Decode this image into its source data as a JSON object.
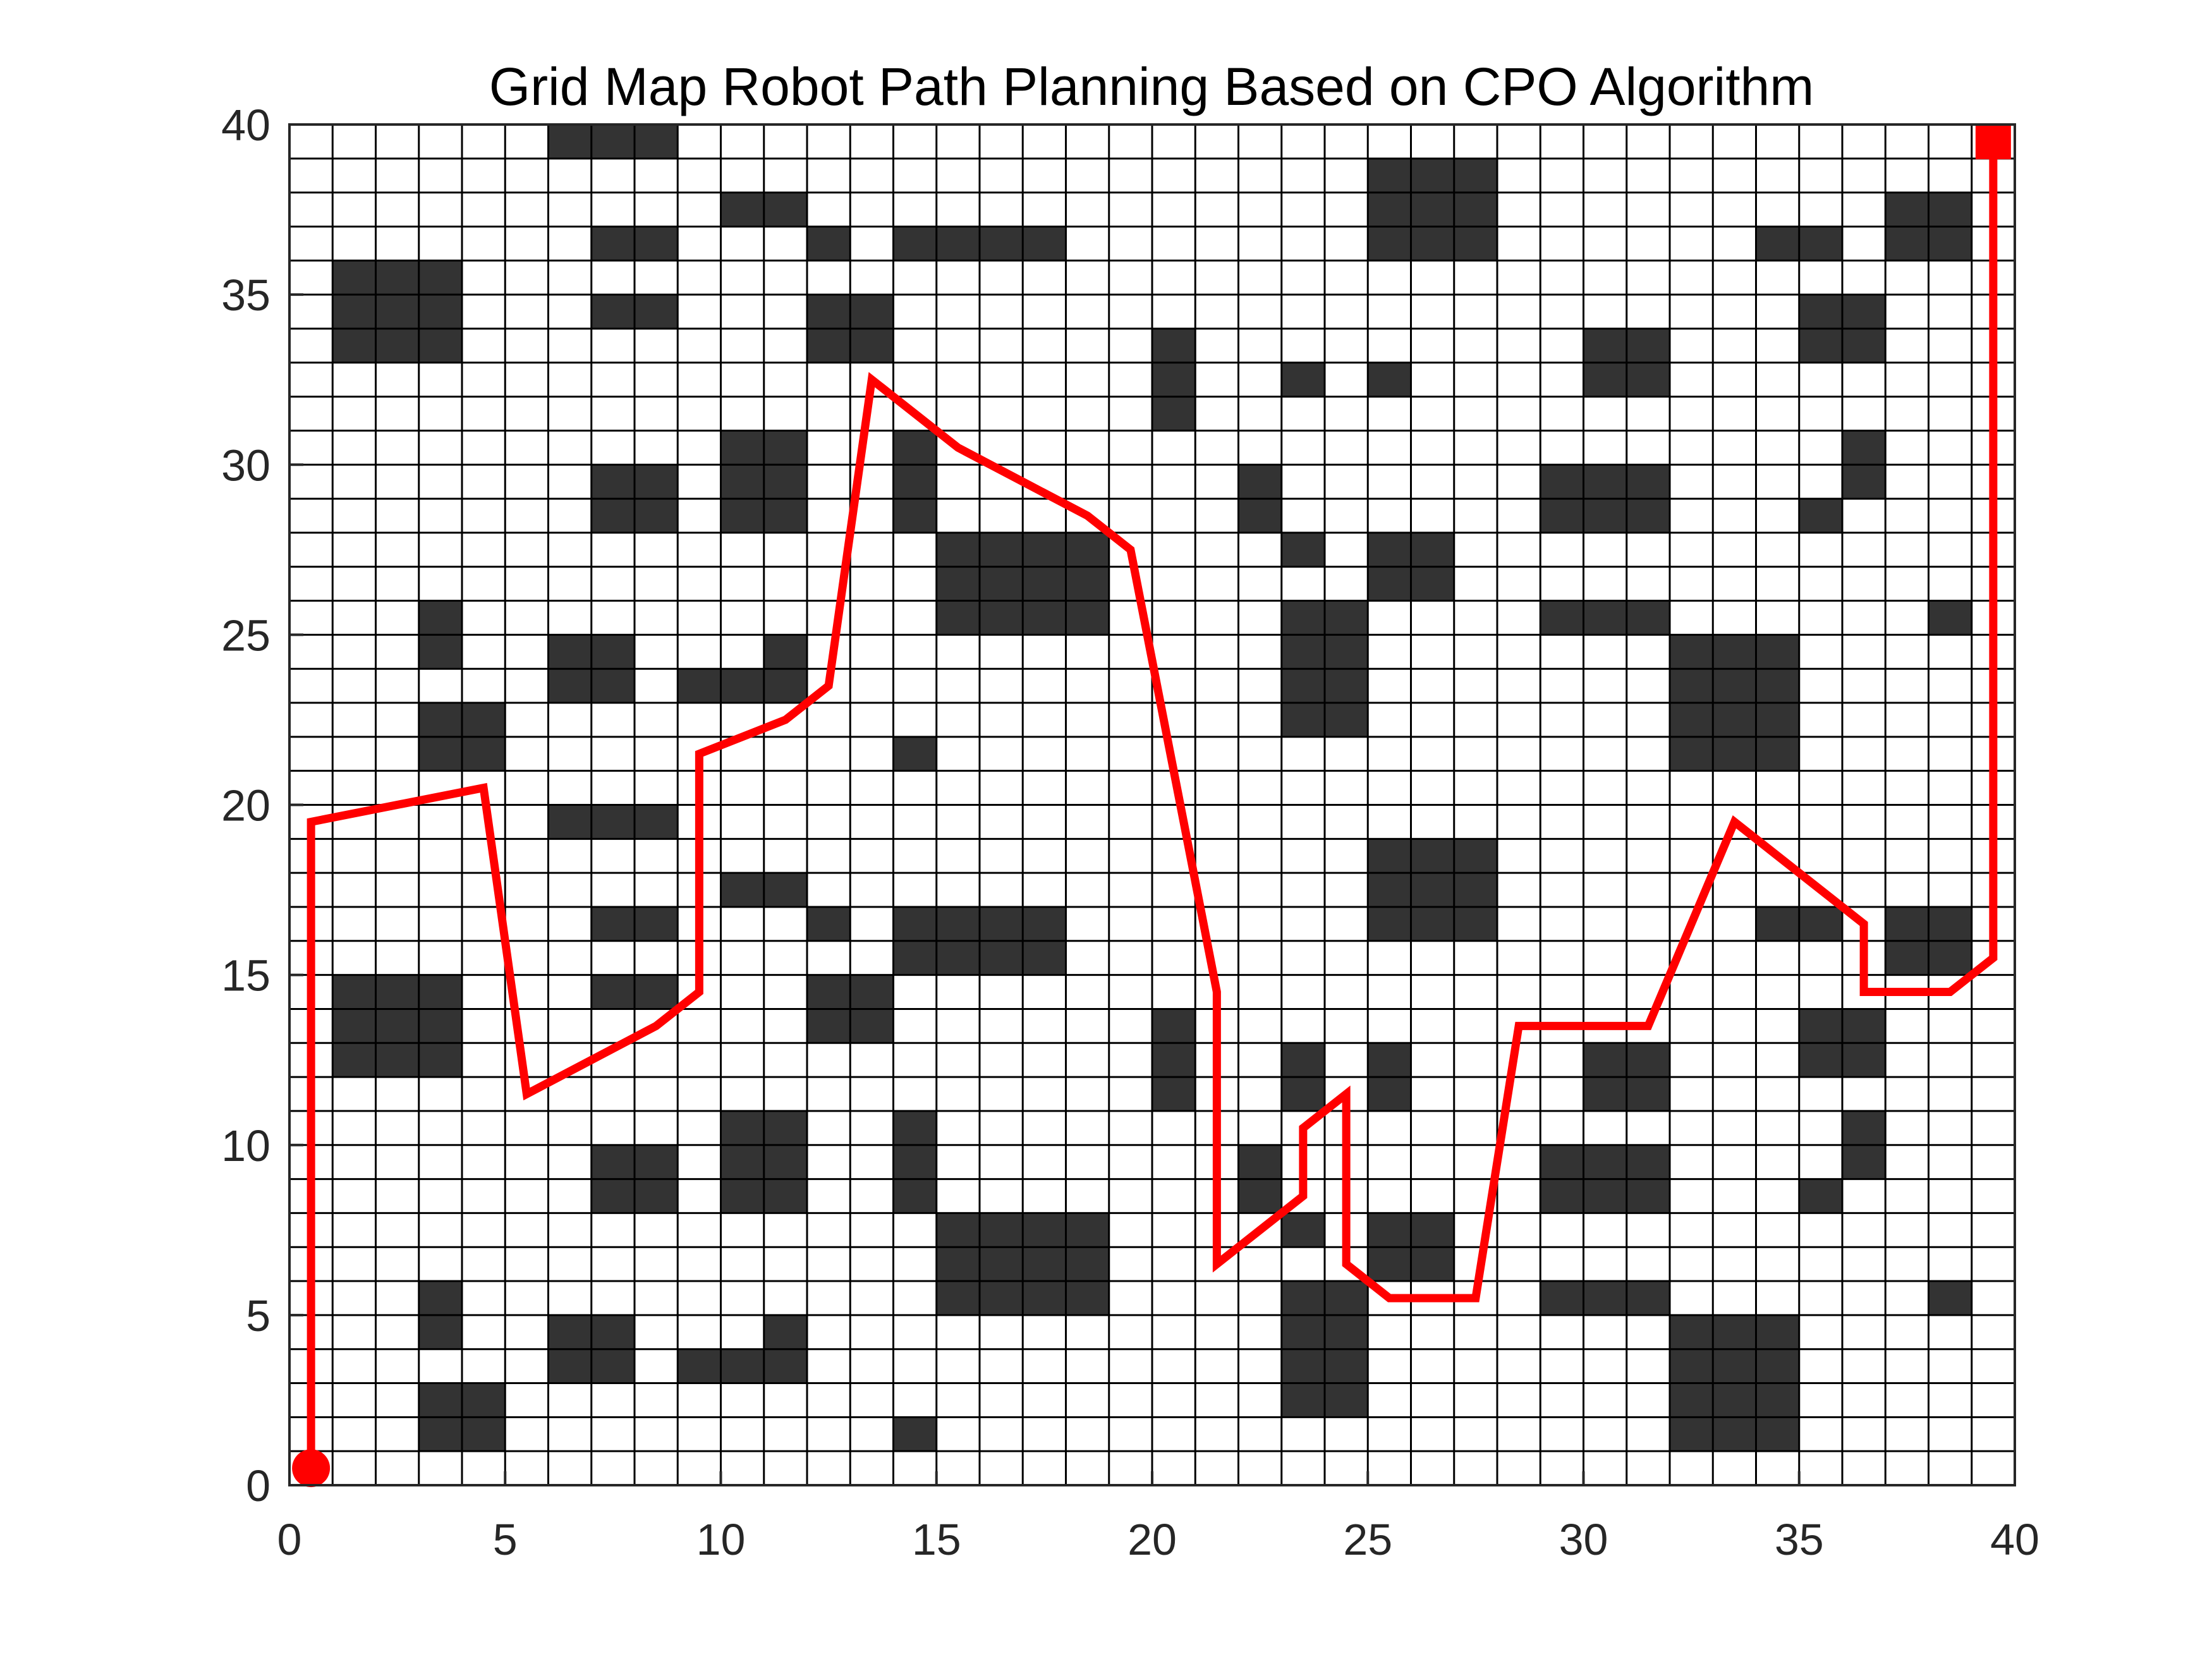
{
  "chart_data": {
    "type": "grid-map-path",
    "title": "Grid Map Robot Path Planning Based on CPO Algorithm",
    "xlabel": "",
    "ylabel": "",
    "xlim": [
      0,
      40
    ],
    "ylim": [
      0,
      40
    ],
    "x_ticks": [
      "0",
      "5",
      "10",
      "15",
      "20",
      "25",
      "30",
      "35",
      "40"
    ],
    "y_ticks": [
      "0",
      "5",
      "10",
      "15",
      "20",
      "25",
      "30",
      "35",
      "40"
    ],
    "x_tick_values": [
      0,
      5,
      10,
      15,
      20,
      25,
      30,
      35,
      40
    ],
    "y_tick_values": [
      0,
      5,
      10,
      15,
      20,
      25,
      30,
      35,
      40
    ],
    "grid": true,
    "grid_cells": 40,
    "obstacle_color": "#333333",
    "path_color": "#ff0000",
    "obstacles": [
      [
        6,
        39,
        3,
        1
      ],
      [
        10,
        37,
        2,
        1
      ],
      [
        25,
        36,
        3,
        3
      ],
      [
        7,
        36,
        2,
        1
      ],
      [
        12,
        36,
        1,
        1
      ],
      [
        14,
        36,
        4,
        1
      ],
      [
        34,
        36,
        2,
        1
      ],
      [
        37,
        36,
        2,
        2
      ],
      [
        1,
        33,
        3,
        3
      ],
      [
        7,
        34,
        2,
        1
      ],
      [
        12,
        33,
        2,
        2
      ],
      [
        35,
        33,
        2,
        2
      ],
      [
        20,
        31,
        1,
        3
      ],
      [
        23,
        32,
        1,
        1
      ],
      [
        25,
        32,
        1,
        1
      ],
      [
        30,
        32,
        2,
        2
      ],
      [
        7,
        28,
        2,
        2
      ],
      [
        10,
        28,
        2,
        3
      ],
      [
        14,
        28,
        1,
        3
      ],
      [
        22,
        28,
        1,
        2
      ],
      [
        29,
        28,
        3,
        2
      ],
      [
        36,
        29,
        1,
        2
      ],
      [
        35,
        28,
        1,
        1
      ],
      [
        23,
        27,
        1,
        1
      ],
      [
        25,
        26,
        2,
        2
      ],
      [
        15,
        25,
        4,
        3
      ],
      [
        3,
        24,
        1,
        2
      ],
      [
        6,
        23,
        2,
        2
      ],
      [
        11,
        24,
        1,
        1
      ],
      [
        9,
        23,
        3,
        1
      ],
      [
        23,
        22,
        2,
        4
      ],
      [
        29,
        25,
        3,
        1
      ],
      [
        38,
        25,
        1,
        1
      ],
      [
        32,
        21,
        3,
        4
      ],
      [
        3,
        21,
        2,
        2
      ],
      [
        14,
        21,
        1,
        1
      ],
      [
        6,
        19,
        3,
        1
      ],
      [
        25,
        16,
        3,
        3
      ],
      [
        10,
        17,
        2,
        1
      ],
      [
        7,
        16,
        2,
        1
      ],
      [
        12,
        16,
        1,
        1
      ],
      [
        14,
        15,
        4,
        2
      ],
      [
        34,
        16,
        2,
        1
      ],
      [
        37,
        15,
        2,
        2
      ],
      [
        1,
        12,
        3,
        3
      ],
      [
        7,
        14,
        2,
        1
      ],
      [
        12,
        13,
        2,
        2
      ],
      [
        35,
        12,
        2,
        2
      ],
      [
        20,
        11,
        1,
        3
      ],
      [
        23,
        11,
        1,
        2
      ],
      [
        25,
        11,
        1,
        2
      ],
      [
        30,
        11,
        2,
        2
      ],
      [
        7,
        8,
        2,
        2
      ],
      [
        10,
        8,
        2,
        3
      ],
      [
        14,
        8,
        1,
        3
      ],
      [
        22,
        8,
        1,
        2
      ],
      [
        29,
        8,
        3,
        2
      ],
      [
        36,
        9,
        1,
        2
      ],
      [
        35,
        8,
        1,
        1
      ],
      [
        23,
        7,
        1,
        1
      ],
      [
        25,
        6,
        2,
        2
      ],
      [
        15,
        5,
        4,
        3
      ],
      [
        3,
        4,
        1,
        2
      ],
      [
        6,
        3,
        2,
        2
      ],
      [
        11,
        4,
        1,
        1
      ],
      [
        9,
        3,
        3,
        1
      ],
      [
        23,
        2,
        2,
        4
      ],
      [
        29,
        5,
        3,
        1
      ],
      [
        38,
        5,
        1,
        1
      ],
      [
        32,
        1,
        3,
        4
      ],
      [
        3,
        1,
        2,
        2
      ],
      [
        14,
        1,
        1,
        1
      ]
    ],
    "path": [
      [
        0.5,
        0.5
      ],
      [
        0.5,
        19.5
      ],
      [
        4.5,
        20.5
      ],
      [
        5.5,
        11.5
      ],
      [
        8.5,
        13.5
      ],
      [
        9.5,
        14.5
      ],
      [
        9.5,
        21.5
      ],
      [
        11.5,
        22.5
      ],
      [
        12.5,
        23.5
      ],
      [
        13.5,
        32.5
      ],
      [
        15.5,
        30.5
      ],
      [
        18.5,
        28.5
      ],
      [
        19.5,
        27.5
      ],
      [
        21.5,
        14.5
      ],
      [
        21.5,
        6.5
      ],
      [
        23.5,
        8.5
      ],
      [
        23.5,
        10.5
      ],
      [
        24.5,
        11.5
      ],
      [
        24.5,
        6.5
      ],
      [
        25.5,
        5.5
      ],
      [
        27.5,
        5.5
      ],
      [
        28.5,
        13.5
      ],
      [
        31.5,
        13.5
      ],
      [
        33.5,
        19.5
      ],
      [
        36.5,
        16.5
      ],
      [
        36.5,
        14.5
      ],
      [
        38.5,
        14.5
      ],
      [
        39.5,
        15.5
      ],
      [
        39.5,
        39.5
      ]
    ],
    "start": [
      0.5,
      0.5
    ],
    "goal": [
      39.5,
      39.5
    ]
  }
}
